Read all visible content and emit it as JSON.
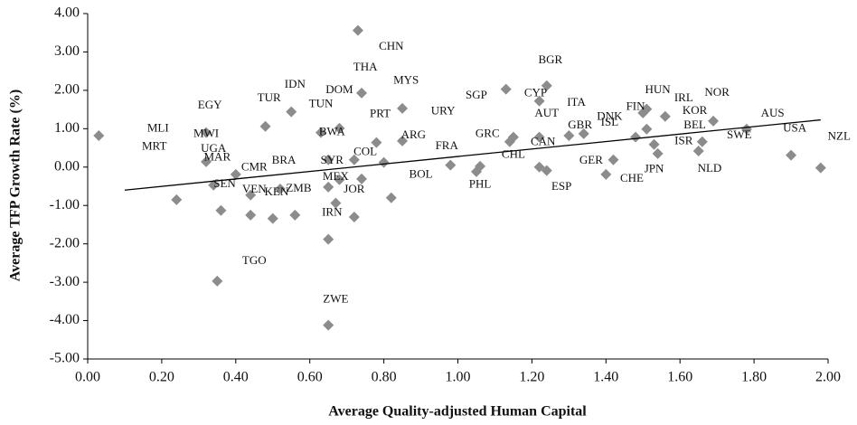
{
  "chart_data": {
    "type": "scatter",
    "x_label": "Average Quality-adjusted Human Capital",
    "y_label": "Average TFP Growth Rate (%)",
    "xlim": [
      0,
      2
    ],
    "xticks": [
      {
        "value": 0,
        "label": "0.00"
      },
      {
        "value": 0.2,
        "label": "0.20"
      },
      {
        "value": 0.4,
        "label": "0.40"
      },
      {
        "value": 0.6,
        "label": "0.60"
      },
      {
        "value": 0.8,
        "label": "0.80"
      },
      {
        "value": 1,
        "label": "1.00"
      },
      {
        "value": 1.2,
        "label": "1.20"
      },
      {
        "value": 1.4,
        "label": "1.40"
      },
      {
        "value": 1.6,
        "label": "1.60"
      },
      {
        "value": 1.8,
        "label": "1.80"
      },
      {
        "value": 2,
        "label": "2.00"
      }
    ],
    "ylim": [
      -5,
      4
    ],
    "yticks": [
      {
        "value": -5,
        "label": "-5.00"
      },
      {
        "value": -4,
        "label": "-4.00"
      },
      {
        "value": -3,
        "label": "-3.00"
      },
      {
        "value": -2,
        "label": "-2.00"
      },
      {
        "value": -1,
        "label": "-1.00"
      },
      {
        "value": 0,
        "label": "0.00"
      },
      {
        "value": 1,
        "label": "1.00"
      },
      {
        "value": 2,
        "label": "2.00"
      },
      {
        "value": 3,
        "label": "3.00"
      },
      {
        "value": 4,
        "label": "4.00"
      }
    ],
    "series": [
      {
        "color": "#8c8c8c",
        "x": [
          0.03,
          0.24,
          0.32,
          0.32,
          0.34,
          0.36,
          0.35,
          0.4,
          0.44,
          0.44,
          0.48,
          0.5,
          0.52,
          0.55,
          0.56,
          0.63,
          0.65,
          0.65,
          0.65,
          0.67,
          0.68,
          0.68,
          0.65,
          0.72,
          0.72,
          0.73,
          0.74,
          0.74,
          0.78,
          0.85,
          0.8,
          0.82,
          0.85,
          0.98,
          1.06,
          1.05,
          1.13,
          1.14,
          1.15,
          1.22,
          1.24,
          1.22,
          1.24,
          1.22,
          1.3,
          1.34,
          1.4,
          1.42,
          1.48,
          1.5,
          1.51,
          1.51,
          1.53,
          1.54,
          1.56,
          1.65,
          1.66,
          1.69,
          1.78,
          1.9,
          1.98
        ],
        "y": [
          0.82,
          -0.85,
          0.9,
          0.14,
          -0.47,
          -1.13,
          -2.97,
          -0.19,
          -0.73,
          -1.25,
          1.06,
          -1.34,
          -0.57,
          1.44,
          -1.25,
          0.9,
          -0.52,
          -1.88,
          -4.12,
          -0.94,
          -0.33,
          1.01,
          0.19,
          -1.3,
          0.19,
          3.56,
          1.93,
          -0.31,
          0.64,
          0.68,
          0.12,
          -0.8,
          1.53,
          0.05,
          0.02,
          -0.12,
          2.03,
          0.66,
          0.78,
          1.72,
          2.12,
          0.0,
          -0.09,
          0.78,
          0.82,
          0.87,
          -0.19,
          0.19,
          0.78,
          1.41,
          1.51,
          0.99,
          0.59,
          0.35,
          1.32,
          0.42,
          0.66,
          1.2,
          0.99,
          0.31,
          -0.02
        ]
      }
    ],
    "trendline": {
      "x": [
        0.1,
        1.98
      ],
      "y": [
        -0.6,
        1.23
      ]
    },
    "annotations": [
      {
        "text": "CHN",
        "x": 0.82,
        "y": 3.13
      },
      {
        "text": "BGR",
        "x": 1.25,
        "y": 2.78
      },
      {
        "text": "THA",
        "x": 0.75,
        "y": 2.59
      },
      {
        "text": "IDN",
        "x": 0.56,
        "y": 2.14
      },
      {
        "text": "MYS",
        "x": 0.86,
        "y": 2.24
      },
      {
        "text": "EGY",
        "x": 0.33,
        "y": 1.6
      },
      {
        "text": "TUR",
        "x": 0.49,
        "y": 1.79
      },
      {
        "text": "DOM",
        "x": 0.68,
        "y": 2.0
      },
      {
        "text": "SGP",
        "x": 1.05,
        "y": 1.86
      },
      {
        "text": "CYP",
        "x": 1.21,
        "y": 1.91
      },
      {
        "text": "HUN",
        "x": 1.54,
        "y": 2.0
      },
      {
        "text": "IRL",
        "x": 1.61,
        "y": 1.79
      },
      {
        "text": "NOR",
        "x": 1.7,
        "y": 1.93
      },
      {
        "text": "TUN",
        "x": 0.63,
        "y": 1.63
      },
      {
        "text": "PRT",
        "x": 0.79,
        "y": 1.37
      },
      {
        "text": "URY",
        "x": 0.96,
        "y": 1.44
      },
      {
        "text": "ITA",
        "x": 1.32,
        "y": 1.67
      },
      {
        "text": "AUT",
        "x": 1.24,
        "y": 1.39
      },
      {
        "text": "KOR",
        "x": 1.64,
        "y": 1.46
      },
      {
        "text": "AUS",
        "x": 1.85,
        "y": 1.39
      },
      {
        "text": "FIN",
        "x": 1.48,
        "y": 1.56
      },
      {
        "text": "DNK",
        "x": 1.41,
        "y": 1.3
      },
      {
        "text": "ISL",
        "x": 1.41,
        "y": 1.15
      },
      {
        "text": "GBR",
        "x": 1.33,
        "y": 1.08
      },
      {
        "text": "BEL",
        "x": 1.64,
        "y": 1.08
      },
      {
        "text": "MLI",
        "x": 0.19,
        "y": 0.99
      },
      {
        "text": "MWI",
        "x": 0.32,
        "y": 0.85
      },
      {
        "text": "BWA",
        "x": 0.66,
        "y": 0.9
      },
      {
        "text": "USA",
        "x": 1.91,
        "y": 0.99
      },
      {
        "text": "NZL",
        "x": 2.03,
        "y": 0.78
      },
      {
        "text": "GRC",
        "x": 1.08,
        "y": 0.85
      },
      {
        "text": "ARG",
        "x": 0.88,
        "y": 0.82
      },
      {
        "text": "COL",
        "x": 0.75,
        "y": 0.38
      },
      {
        "text": "UGA",
        "x": 0.34,
        "y": 0.47
      },
      {
        "text": "FRA",
        "x": 0.97,
        "y": 0.54
      },
      {
        "text": "CAN",
        "x": 1.23,
        "y": 0.64
      },
      {
        "text": "MAR",
        "x": 0.35,
        "y": 0.24
      },
      {
        "text": "SYR",
        "x": 0.66,
        "y": 0.16
      },
      {
        "text": "MRT",
        "x": 0.18,
        "y": 0.52
      },
      {
        "text": "CHL",
        "x": 1.15,
        "y": 0.31
      },
      {
        "text": "ISR",
        "x": 1.61,
        "y": 0.66
      },
      {
        "text": "SWE",
        "x": 1.76,
        "y": 0.82
      },
      {
        "text": "BRA",
        "x": 0.53,
        "y": 0.16
      },
      {
        "text": "CMR",
        "x": 0.45,
        "y": -0.02
      },
      {
        "text": "BOL",
        "x": 0.9,
        "y": -0.21
      },
      {
        "text": "MEX",
        "x": 0.67,
        "y": -0.26
      },
      {
        "text": "GER",
        "x": 1.36,
        "y": 0.16
      },
      {
        "text": "JPN",
        "x": 1.53,
        "y": -0.07
      },
      {
        "text": "NLD",
        "x": 1.68,
        "y": -0.05
      },
      {
        "text": "CHE",
        "x": 1.47,
        "y": -0.31
      },
      {
        "text": "SEN",
        "x": 0.37,
        "y": -0.45
      },
      {
        "text": "VEN",
        "x": 0.45,
        "y": -0.59
      },
      {
        "text": "KEN",
        "x": 0.51,
        "y": -0.66
      },
      {
        "text": "ZMB",
        "x": 0.57,
        "y": -0.57
      },
      {
        "text": "JOR",
        "x": 0.72,
        "y": -0.59
      },
      {
        "text": "PHL",
        "x": 1.06,
        "y": -0.47
      },
      {
        "text": "ESP",
        "x": 1.28,
        "y": -0.52
      },
      {
        "text": "IRN",
        "x": 0.66,
        "y": -1.2
      },
      {
        "text": "TGO",
        "x": 0.45,
        "y": -2.45
      },
      {
        "text": "ZWE",
        "x": 0.67,
        "y": -3.46
      }
    ]
  }
}
